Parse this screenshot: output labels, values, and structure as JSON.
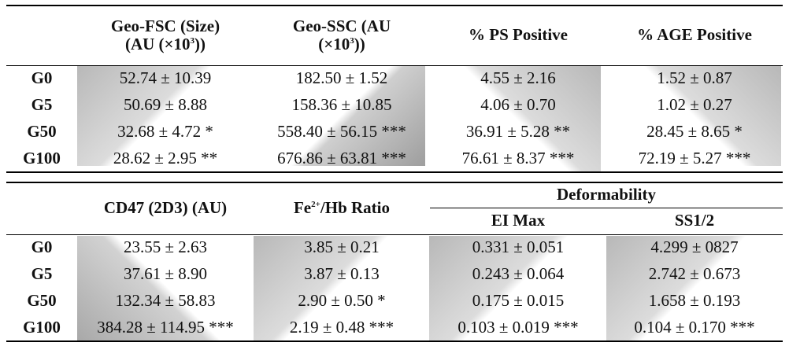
{
  "table1": {
    "headers": {
      "fsc_line1": "Geo-FSC (Size)",
      "fsc_line2": "(AU (×10",
      "fsc_sup": "3",
      "fsc_tail": "))",
      "ssc_line1": "Geo-SSC (AU",
      "ssc_line2": "(×10",
      "ssc_sup": "3",
      "ssc_tail": "))",
      "ps": "% PS Positive",
      "age": "% AGE Positive"
    },
    "rows": [
      {
        "label": "G0",
        "fsc": "52.74 ± 10.39",
        "ssc": "182.50 ± 1.52",
        "ps": "4.55 ± 2.16",
        "age": "1.52 ± 0.87"
      },
      {
        "label": "G5",
        "fsc": "50.69 ± 8.88",
        "ssc": "158.36 ± 10.85",
        "ps": "4.06 ± 0.70",
        "age": "1.02 ± 0.27"
      },
      {
        "label": "G50",
        "fsc": "32.68 ± 4.72 *",
        "ssc": "558.40 ± 56.15 ***",
        "ps": "36.91 ± 5.28 **",
        "age": "28.45 ± 8.65 *"
      },
      {
        "label": "G100",
        "fsc": "28.62 ± 2.95 **",
        "ssc": "676.86 ± 63.81 ***",
        "ps": "76.61 ± 8.37 ***",
        "age": "72.19 ± 5.27 ***"
      }
    ]
  },
  "table2": {
    "headers": {
      "cd47": "CD47 (2D3) (AU)",
      "fe_pre": "Fe",
      "fe_sup": "2+",
      "fe_post": "/Hb Ratio",
      "deformability": "Deformability",
      "eimax": "EI Max",
      "ss12": "SS1/2"
    },
    "rows": [
      {
        "label": "G0",
        "cd47": "23.55 ± 2.63",
        "fe": "3.85 ± 0.21",
        "eimax": "0.331 ± 0.051",
        "ss12": "4.299 ± 0827"
      },
      {
        "label": "G5",
        "cd47": "37.61 ± 8.90",
        "fe": "3.87 ± 0.13",
        "eimax": "0.243 ± 0.064",
        "ss12": "2.742 ± 0.673"
      },
      {
        "label": "G50",
        "cd47": "132.34 ± 58.83",
        "fe": "2.90 ± 0.50 *",
        "eimax": "0.175 ± 0.015",
        "ss12": "1.658 ± 0.193"
      },
      {
        "label": "G100",
        "cd47": "384.28 ± 114.95 ***",
        "fe": "2.19 ± 0.48 ***",
        "eimax": "0.103 ± 0.019 ***",
        "ss12": "0.104 ± 0.170 ***"
      }
    ]
  }
}
